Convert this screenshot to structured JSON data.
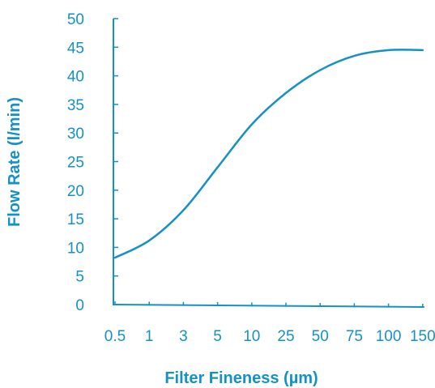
{
  "chart_data": {
    "type": "line",
    "xlabel": "Filter Fineness (µm)",
    "ylabel": "Flow Rate (l/min)",
    "x_scale": "categorical",
    "categories": [
      "0.5",
      "1",
      "3",
      "5",
      "10",
      "25",
      "50",
      "75",
      "100",
      "150"
    ],
    "yticks": [
      "0",
      "5",
      "10",
      "15",
      "20",
      "25",
      "30",
      "35",
      "40",
      "45",
      "50"
    ],
    "ylim": [
      0,
      50
    ],
    "grid": false,
    "legend": "none",
    "series": [
      {
        "values": [
          8.2,
          11.2,
          16.5,
          24.0,
          31.5,
          37.0,
          41.0,
          43.5,
          44.5,
          44.5
        ]
      }
    ],
    "colors": {
      "axis": "#1591c6",
      "line": "#1591c6",
      "text": "#1591c6"
    }
  }
}
